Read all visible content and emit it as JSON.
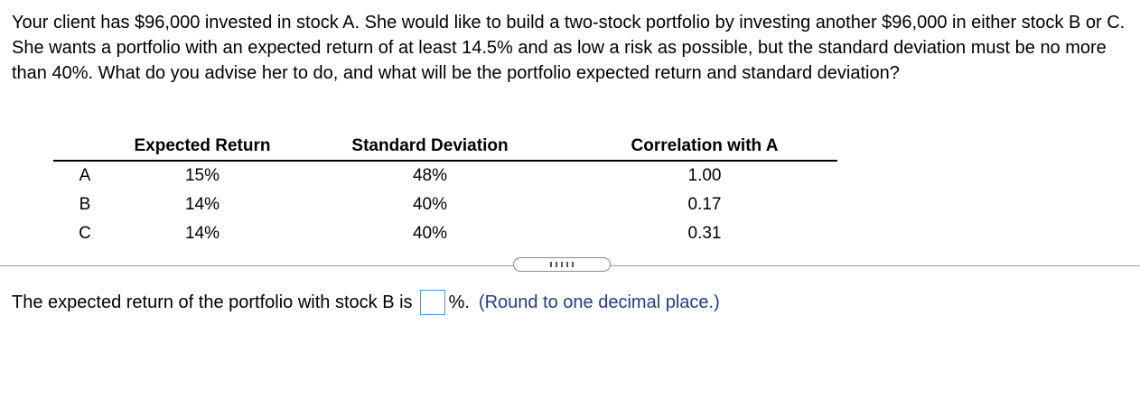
{
  "question": {
    "text": "Your client has $96,000 invested in stock A. She would like to build a two-stock portfolio by investing another $96,000 in either stock B or C. She wants a portfolio with an expected return of at least 14.5% and as low a risk as possible, but the standard deviation must be no more than 40%. What do you advise her to do, and what will be the portfolio expected return and standard deviation?"
  },
  "table": {
    "headers": [
      "",
      "Expected Return",
      "Standard Deviation",
      "Correlation with A"
    ],
    "rows": [
      [
        "A",
        "15%",
        "48%",
        "1.00"
      ],
      [
        "B",
        "14%",
        "40%",
        "0.17"
      ],
      [
        "C",
        "14%",
        "40%",
        "0.31"
      ]
    ]
  },
  "answer": {
    "prompt": "The expected return of the portfolio with stock B is",
    "value": "",
    "unit": "%.",
    "hint": "(Round to one decimal place.)"
  },
  "colors": {
    "hint": "#1f3c8f",
    "input_border": "#5b8fd6"
  }
}
